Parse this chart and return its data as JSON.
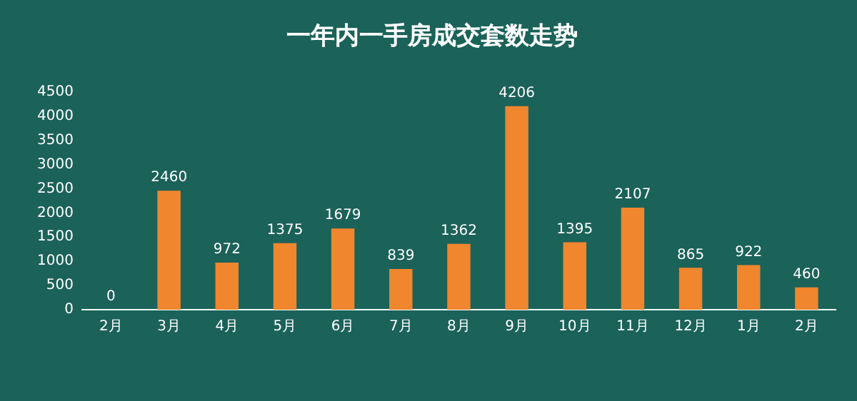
{
  "chart_data": {
    "type": "bar",
    "title": "一年内一手房成交套数走势",
    "categories": [
      "2月",
      "3月",
      "4月",
      "5月",
      "6月",
      "7月",
      "8月",
      "9月",
      "10月",
      "11月",
      "12月",
      "1月",
      "2月"
    ],
    "values": [
      0,
      2460,
      972,
      1375,
      1679,
      839,
      1362,
      4206,
      1395,
      2107,
      865,
      922,
      460
    ],
    "color": "#f0862e",
    "ylim": [
      0,
      4500
    ],
    "yticks": [
      0,
      500,
      1000,
      1500,
      2000,
      2500,
      3000,
      3500,
      4000,
      4500
    ],
    "grid": false,
    "legend": false,
    "data_labels": true
  }
}
